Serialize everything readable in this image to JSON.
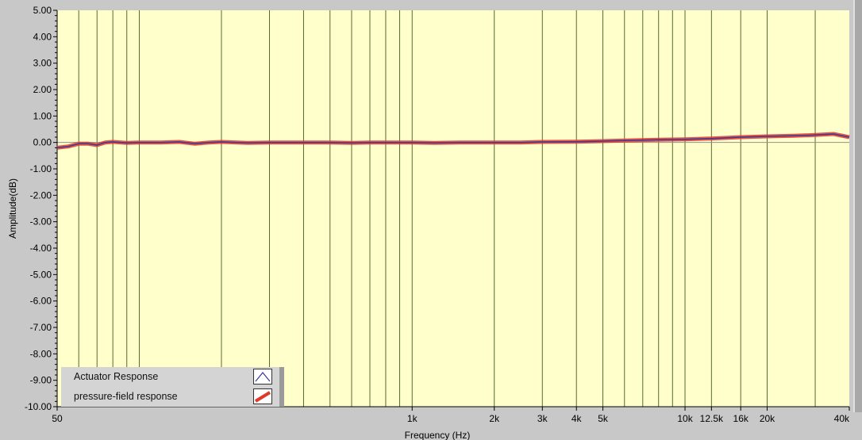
{
  "chart_data": {
    "type": "line",
    "xlabel": "Frequency (Hz)",
    "ylabel": "Amplitude(dB)",
    "xscale": "log",
    "xlim": [
      50,
      40000
    ],
    "ylim": [
      -10,
      5
    ],
    "yticks": [
      "5.00",
      "4.00",
      "3.00",
      "2.00",
      "1.00",
      "0.00",
      "-1.00",
      "-2.00",
      "-3.00",
      "-4.00",
      "-5.00",
      "-6.00",
      "-7.00",
      "-8.00",
      "-9.00",
      "-10.00"
    ],
    "xticks": [
      {
        "v": 50,
        "t": "50"
      },
      {
        "v": 1000,
        "t": "1k"
      },
      {
        "v": 2000,
        "t": "2k"
      },
      {
        "v": 3000,
        "t": "3k"
      },
      {
        "v": 4000,
        "t": "4k"
      },
      {
        "v": 5000,
        "t": "5k"
      },
      {
        "v": 10000,
        "t": "10k"
      },
      {
        "v": 12500,
        "t": "12.5k"
      },
      {
        "v": 16000,
        "t": "16k"
      },
      {
        "v": 20000,
        "t": "20k"
      },
      {
        "v": 40000,
        "t": "40k"
      }
    ],
    "grid": "vertical",
    "background": "#ffffcc",
    "legend": "bottom-left",
    "x": [
      50,
      55,
      60,
      65,
      70,
      75,
      80,
      90,
      100,
      110,
      120,
      140,
      160,
      180,
      200,
      250,
      300,
      400,
      500,
      600,
      700,
      800,
      1000,
      1200,
      1500,
      2000,
      2500,
      3000,
      4000,
      5000,
      6000,
      8000,
      10000,
      12500,
      16000,
      20000,
      25000,
      30000,
      35000,
      40000
    ],
    "series": [
      {
        "name": "Actuator Response",
        "color": "#3a3a9a",
        "values": [
          -0.2,
          -0.15,
          -0.05,
          -0.05,
          -0.1,
          0,
          0.02,
          -0.02,
          0,
          0,
          0,
          0.02,
          -0.05,
          0,
          0.02,
          -0.02,
          0,
          0,
          0,
          -0.02,
          0,
          0,
          0,
          -0.02,
          0,
          0,
          0,
          0.02,
          0.03,
          0.05,
          0.07,
          0.1,
          0.12,
          0.15,
          0.2,
          0.23,
          0.25,
          0.28,
          0.32,
          0.2
        ]
      },
      {
        "name": "pressure-field response",
        "color": "#e0392b",
        "values": [
          -0.2,
          -0.15,
          -0.05,
          -0.05,
          -0.1,
          0,
          0.02,
          -0.02,
          0,
          0,
          0,
          0.02,
          -0.05,
          0,
          0.02,
          -0.02,
          0,
          0,
          0,
          -0.02,
          0,
          0,
          0,
          -0.02,
          0,
          0,
          0,
          0.02,
          0.03,
          0.05,
          0.07,
          0.1,
          0.12,
          0.15,
          0.2,
          0.23,
          0.25,
          0.28,
          0.32,
          0.2
        ]
      }
    ]
  }
}
